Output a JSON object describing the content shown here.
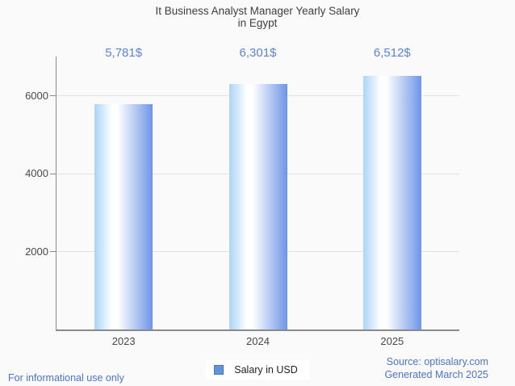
{
  "title_lines": [
    "It Business Analyst Manager Yearly Salary",
    "in Egypt"
  ],
  "legend": {
    "label": "Salary in USD"
  },
  "footer": {
    "disclaimer": "For informational use only",
    "source_line1": "Source: optisalary.com",
    "source_line2": "Generated March 2025"
  },
  "colors": {
    "background": "#fafafa",
    "title_text": "#3e3e3e",
    "axis_line": "#8a8a8a",
    "gridline": "#e2e2e2",
    "tick_label": "#484848",
    "value_label": "#5b84d6",
    "footer_text": "#4d73d1",
    "legend_swatch_fill": "#5e94e2",
    "legend_swatch_border": "#4a76b8",
    "bar_gradient_left": "#aad4f8",
    "bar_gradient_mid": "#ffffff",
    "bar_gradient_right": "#6e95e7"
  },
  "chart_data": {
    "type": "bar",
    "title": "It Business Analyst Manager Yearly Salary in Egypt",
    "categories": [
      "2023",
      "2024",
      "2025"
    ],
    "values": [
      5781,
      6301,
      6512
    ],
    "value_labels": [
      "5,781$",
      "6,301$",
      "6,512$"
    ],
    "series": [
      {
        "name": "Salary in USD",
        "values": [
          5781,
          6301,
          6512
        ]
      }
    ],
    "xlabel": "",
    "ylabel": "",
    "ylim": [
      0,
      7000
    ],
    "yticks": [
      2000,
      4000,
      6000
    ],
    "ytick_labels": [
      "2000",
      "4000",
      "6000"
    ],
    "grid": true,
    "legend_position": "bottom"
  }
}
